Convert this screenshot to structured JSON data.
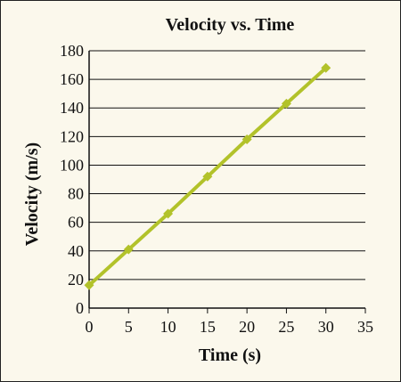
{
  "chart_data": {
    "type": "line",
    "title": "Velocity vs. Time",
    "xlabel": "Time (s)",
    "ylabel": "Velocity (m/s)",
    "xlim": [
      0,
      35
    ],
    "ylim": [
      0,
      180
    ],
    "xticks": [
      "0",
      "5",
      "10",
      "15",
      "20",
      "25",
      "30",
      "35"
    ],
    "yticks": [
      "0",
      "20",
      "40",
      "60",
      "80",
      "100",
      "120",
      "140",
      "160",
      "180"
    ],
    "grid": "horizontal",
    "series": [
      {
        "x": [
          0,
          5,
          10,
          15,
          20,
          25,
          30
        ],
        "y": [
          16,
          41,
          66,
          92,
          118,
          143,
          168
        ]
      }
    ]
  },
  "colors": {
    "series": "#b2c22a",
    "grid": "#111111",
    "axis": "#111111",
    "background": "#fbf8ec"
  }
}
